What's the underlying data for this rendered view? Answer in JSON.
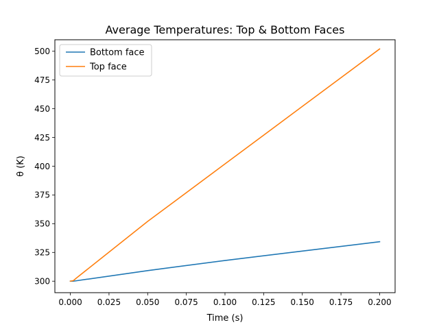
{
  "chart_data": {
    "type": "line",
    "title": "Average Temperatures: Top & Bottom Faces",
    "xlabel": "Time (s)",
    "ylabel": "θ (K)",
    "xlim": [
      -0.01,
      0.21
    ],
    "ylim": [
      290,
      510
    ],
    "xticks": [
      0.0,
      0.025,
      0.05,
      0.075,
      0.1,
      0.125,
      0.15,
      0.175,
      0.2
    ],
    "xtick_labels": [
      "0.000",
      "0.025",
      "0.050",
      "0.075",
      "0.100",
      "0.125",
      "0.150",
      "0.175",
      "0.200"
    ],
    "yticks": [
      300,
      325,
      350,
      375,
      400,
      425,
      450,
      475,
      500
    ],
    "ytick_labels": [
      "300",
      "325",
      "350",
      "375",
      "400",
      "425",
      "450",
      "475",
      "500"
    ],
    "grid": false,
    "legend_position": "top-left",
    "series": [
      {
        "name": "Bottom face",
        "color": "#1f77b4",
        "x": [
          0.0,
          0.002,
          0.05,
          0.1,
          0.15,
          0.2
        ],
        "y": [
          300.0,
          300.0,
          309.2,
          318.0,
          326.2,
          334.3
        ]
      },
      {
        "name": "Top face",
        "color": "#ff7f0e",
        "x": [
          0.0,
          0.002,
          0.004,
          0.05,
          0.1,
          0.15,
          0.2
        ],
        "y": [
          300.0,
          300.5,
          302.8,
          352.0,
          402.0,
          452.0,
          502.0
        ]
      }
    ]
  }
}
